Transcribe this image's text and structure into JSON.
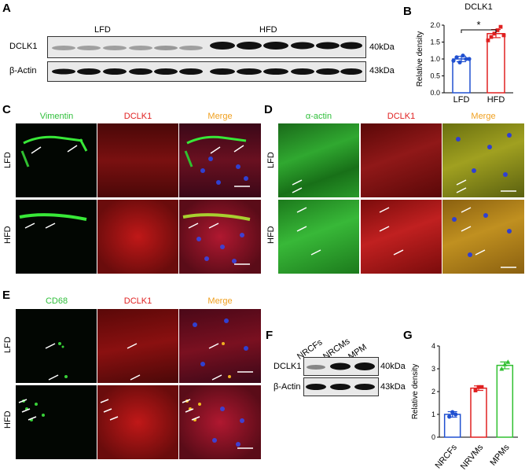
{
  "panels": {
    "A": {
      "letter": "A",
      "group_left": "LFD",
      "group_right": "HFD",
      "row1": "DCLK1",
      "row2": "β-Actin",
      "kda1": "40kDa",
      "kda2": "43kDa"
    },
    "B": {
      "letter": "B"
    },
    "C": {
      "letter": "C",
      "ch1": "Vimentin",
      "ch2": "DCLK1",
      "ch3": "Merge",
      "row1": "LFD",
      "row2": "HFD"
    },
    "D": {
      "letter": "D",
      "ch1": "α-actin",
      "ch2": "DCLK1",
      "ch3": "Merge",
      "row1": "LFD",
      "row2": "HFD"
    },
    "E": {
      "letter": "E",
      "ch1": "CD68",
      "ch2": "DCLK1",
      "ch3": "Merge",
      "row1": "LFD",
      "row2": "HFD"
    },
    "F": {
      "letter": "F",
      "col1": "NRCFs",
      "col2": "NRCMs",
      "col3": "MPM",
      "row1": "DCLK1",
      "row2": "β-Actin",
      "kda1": "40kDa",
      "kda2": "43kDa"
    },
    "G": {
      "letter": "G"
    }
  },
  "chart_data": [
    {
      "type": "bar",
      "title": "DCLK1",
      "ylabel": "Relative density",
      "categories": [
        "LFD",
        "HFD"
      ],
      "values": [
        1.0,
        1.75
      ],
      "errors": [
        0.08,
        0.12
      ],
      "points": [
        [
          0.95,
          1.05,
          0.9,
          1.1,
          1.0,
          1.0
        ],
        [
          1.55,
          1.65,
          1.75,
          1.85,
          1.95,
          1.7
        ]
      ],
      "colors": [
        "#2050d0",
        "#e02020"
      ],
      "ylim": [
        0,
        2.0
      ],
      "yticks": [
        "0.0",
        "0.5",
        "1.0",
        "1.5",
        "2.0"
      ],
      "annotation": "*"
    },
    {
      "type": "bar",
      "ylabel": "Relative density",
      "categories": [
        "NRCFs",
        "NRVMs",
        "MPMs"
      ],
      "values": [
        1.0,
        2.15,
        3.15
      ],
      "errors": [
        0.12,
        0.1,
        0.15
      ],
      "points": [
        [
          0.9,
          1.1,
          1.0
        ],
        [
          2.05,
          2.2,
          2.2
        ],
        [
          3.0,
          3.2,
          3.3
        ]
      ],
      "colors": [
        "#2050d0",
        "#e02020",
        "#30c030"
      ],
      "ylim": [
        0,
        4
      ],
      "yticks": [
        "0",
        "1",
        "2",
        "3",
        "4"
      ]
    }
  ]
}
